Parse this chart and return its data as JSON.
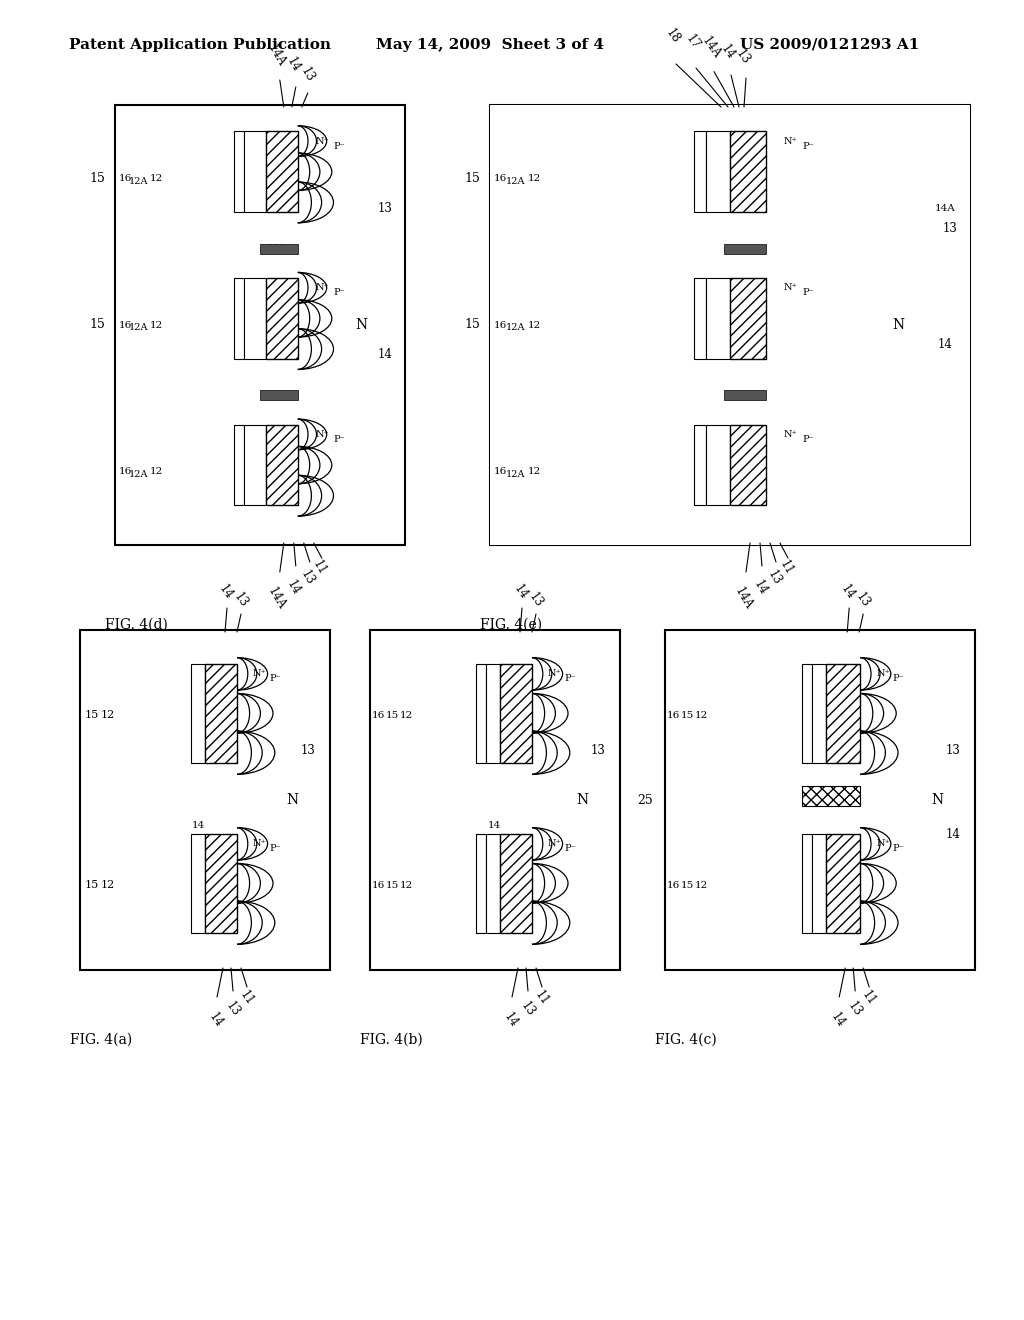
{
  "header_left": "Patent Application Publication",
  "header_mid": "May 14, 2009  Sheet 3 of 4",
  "header_right": "US 2009/0121293 A1",
  "bg_color": "#ffffff"
}
